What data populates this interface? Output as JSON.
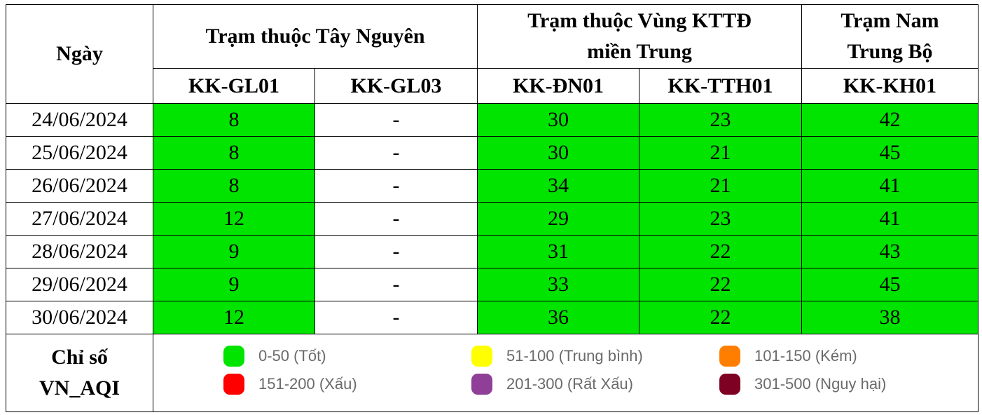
{
  "header": {
    "day_label": "Ngày",
    "groups": [
      {
        "line1": "Trạm thuộc Tây Nguyên",
        "line2": ""
      },
      {
        "line1": "Trạm thuộc Vùng KTTĐ",
        "line2": "miền Trung"
      },
      {
        "line1": "Trạm Nam",
        "line2": "Trung Bộ"
      }
    ],
    "stations": [
      "KK-GL01",
      "KK-GL03",
      "KK-ĐN01",
      "KK-TTH01",
      "KK-KH01"
    ]
  },
  "rows": [
    {
      "date": "24/06/2024",
      "values": [
        "8",
        "-",
        "30",
        "23",
        "42"
      ]
    },
    {
      "date": "25/06/2024",
      "values": [
        "8",
        "-",
        "30",
        "21",
        "45"
      ]
    },
    {
      "date": "26/06/2024",
      "values": [
        "8",
        "-",
        "34",
        "21",
        "41"
      ]
    },
    {
      "date": "27/06/2024",
      "values": [
        "12",
        "-",
        "29",
        "23",
        "41"
      ]
    },
    {
      "date": "28/06/2024",
      "values": [
        "9",
        "-",
        "31",
        "22",
        "43"
      ]
    },
    {
      "date": "29/06/2024",
      "values": [
        "9",
        "-",
        "33",
        "22",
        "45"
      ]
    },
    {
      "date": "30/06/2024",
      "values": [
        "12",
        "-",
        "36",
        "22",
        "38"
      ]
    }
  ],
  "index_label": {
    "line1": "Chỉ số",
    "line2": "VN_AQI"
  },
  "legend": [
    {
      "label": "0-50 (Tốt)",
      "color": "#00e400"
    },
    {
      "label": "51-100 (Trung bình)",
      "color": "#ffff00"
    },
    {
      "label": "101-150 (Kém)",
      "color": "#ff7e00"
    },
    {
      "label": "151-200 (Xấu)",
      "color": "#ff0000"
    },
    {
      "label": "201-300 (Rất Xấu)",
      "color": "#8f3f97"
    },
    {
      "label": "301-500 (Nguy hại)",
      "color": "#7e0023"
    }
  ],
  "colors": {
    "good": "#00e400",
    "border": "#000000"
  }
}
